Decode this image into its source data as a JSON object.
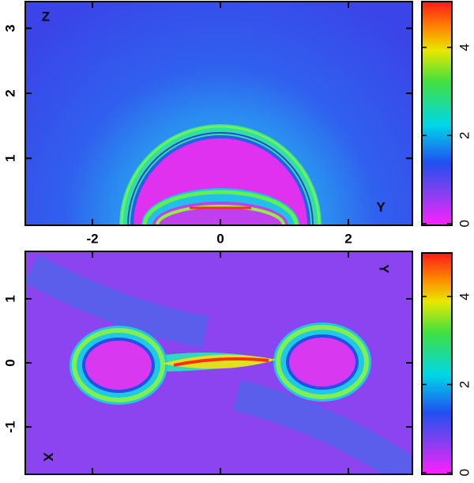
{
  "chart_data": [
    {
      "type": "heatmap",
      "labels": [
        "Z",
        "Y"
      ],
      "xlim": [
        -3.05,
        3.0
      ],
      "ylim": [
        -0.03,
        3.41
      ],
      "xticks": [
        -2,
        0,
        2
      ],
      "yticks": [
        1,
        2,
        3
      ],
      "show_xtick_labels": true,
      "colorbar": {
        "lim": [
          -0.04,
          5.04
        ],
        "ticks": [
          0,
          2,
          4
        ]
      }
    },
    {
      "type": "heatmap",
      "labels": [
        "Y",
        "X"
      ],
      "xlim": [
        -3.05,
        3.0
      ],
      "ylim": [
        -1.74,
        1.74
      ],
      "xticks": [
        -2,
        0,
        2
      ],
      "yticks": [
        -1,
        0,
        1
      ],
      "show_xtick_labels": false,
      "colorbar": {
        "lim": [
          -0.04,
          4.99
        ],
        "ticks": [
          0,
          2,
          4
        ]
      }
    }
  ]
}
